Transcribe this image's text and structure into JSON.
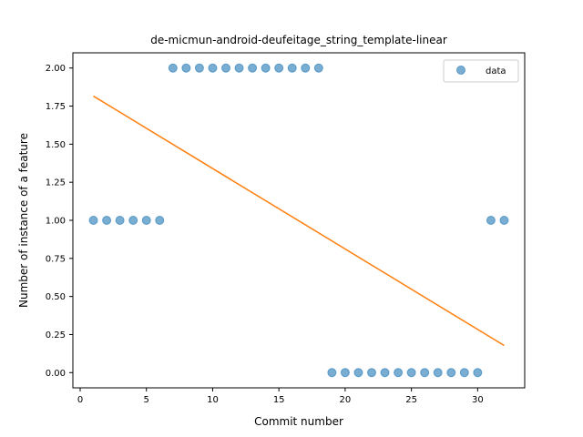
{
  "chart_data": {
    "type": "scatter",
    "title": "de-micmun-android-deufeitage_string_template-linear",
    "xlabel": "Commit number",
    "ylabel": "Number of instance of a feature",
    "xlim": [
      -0.55,
      33.55
    ],
    "ylim": [
      -0.1,
      2.1
    ],
    "xticks": [
      0,
      5,
      10,
      15,
      20,
      25,
      30
    ],
    "xtick_labels": [
      "0",
      "5",
      "10",
      "15",
      "20",
      "25",
      "30"
    ],
    "yticks": [
      0,
      0.25,
      0.5,
      0.75,
      1.0,
      1.25,
      1.5,
      1.75,
      2.0
    ],
    "ytick_labels": [
      "0.00",
      "0.25",
      "0.50",
      "0.75",
      "1.00",
      "1.25",
      "1.50",
      "1.75",
      "2.00"
    ],
    "grid": false,
    "legend_position": "top-right",
    "series": [
      {
        "name": "data",
        "kind": "scatter",
        "color": "#1f77b4",
        "x": [
          1,
          2,
          3,
          4,
          5,
          6,
          7,
          8,
          9,
          10,
          11,
          12,
          13,
          14,
          15,
          16,
          17,
          18,
          19,
          20,
          21,
          22,
          23,
          24,
          25,
          26,
          27,
          28,
          29,
          30,
          31,
          32
        ],
        "y": [
          1,
          1,
          1,
          1,
          1,
          1,
          2,
          2,
          2,
          2,
          2,
          2,
          2,
          2,
          2,
          2,
          2,
          2,
          0,
          0,
          0,
          0,
          0,
          0,
          0,
          0,
          0,
          0,
          0,
          0,
          1,
          1
        ]
      },
      {
        "kind": "line",
        "color": "#ff7f0e",
        "x": [
          1,
          32
        ],
        "y": [
          1.8156,
          0.178
        ]
      }
    ]
  }
}
